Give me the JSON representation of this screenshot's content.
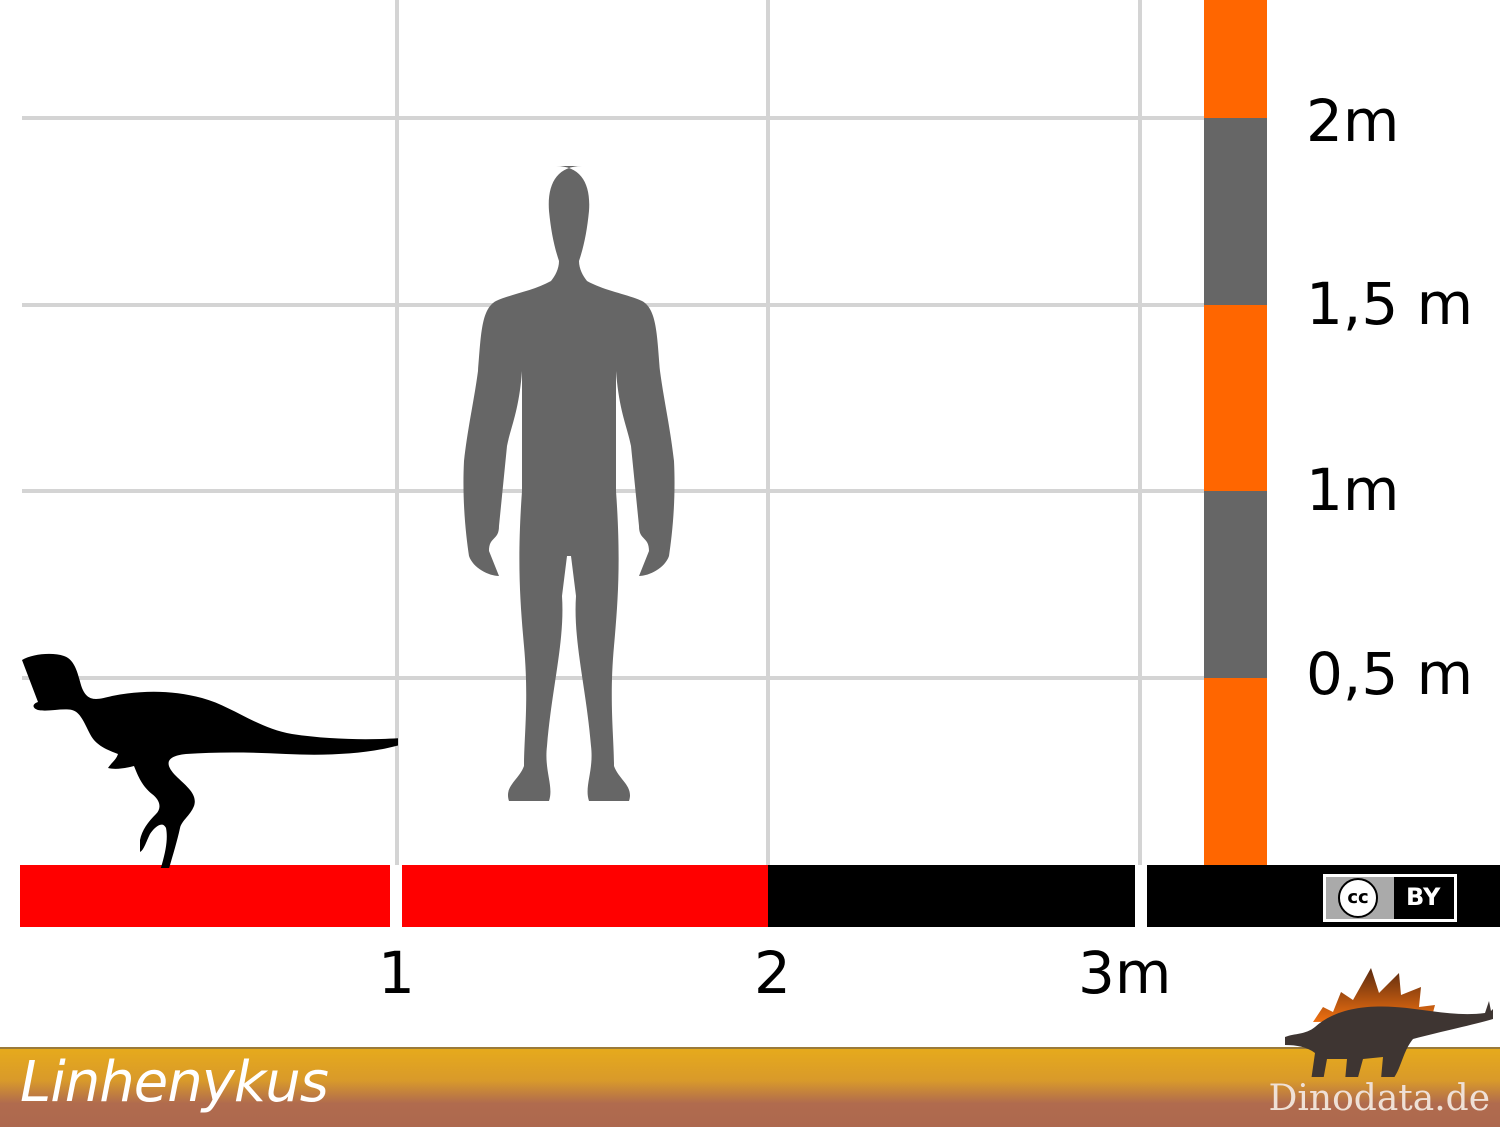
{
  "title": "Linhenykus",
  "brand": "Dinodata.de",
  "license": {
    "cc": "cc",
    "by": "BY"
  },
  "height_scale": {
    "labels": [
      "2m",
      "1,5 m",
      "1m",
      "0,5 m"
    ],
    "colors": {
      "orange": "#ff6600",
      "gray": "#666666"
    }
  },
  "length_scale": {
    "labels": [
      "1",
      "2",
      "3m"
    ],
    "colors": {
      "red": "#ff0000",
      "black": "#000000"
    }
  },
  "silhouettes": {
    "human_color": "#666666",
    "dinosaur_color": "#000000"
  }
}
